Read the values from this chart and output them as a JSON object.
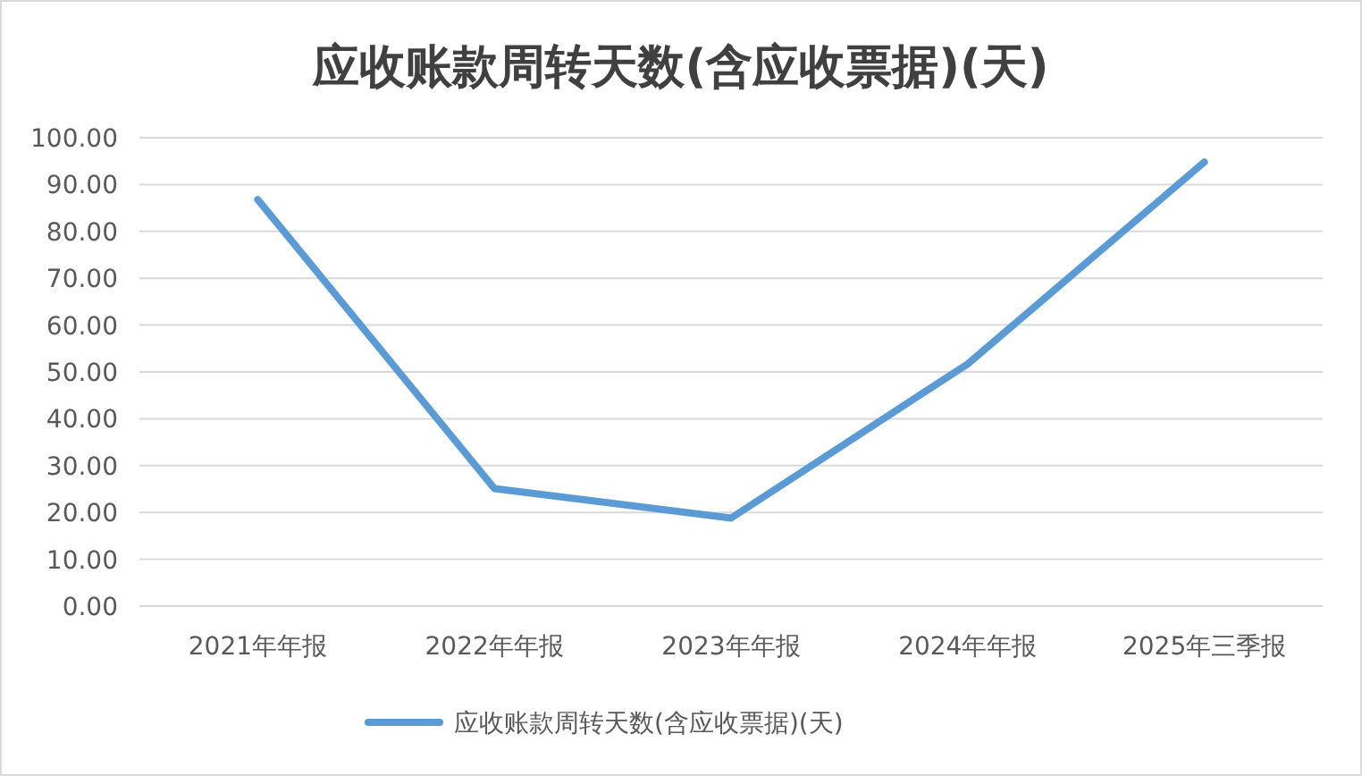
{
  "chart_data": {
    "type": "line",
    "title": "应收账款周转天数(含应收票据)(天)",
    "categories": [
      "2021年年报",
      "2022年年报",
      "2023年年报",
      "2024年年报",
      "2025年三季报"
    ],
    "series": [
      {
        "name": "应收账款周转天数(含应收票据)(天)",
        "color": "#5b9bd5",
        "values": [
          86.8,
          25.1,
          18.8,
          51.7,
          94.8
        ]
      }
    ],
    "ylim": [
      0,
      100
    ],
    "yticks": [
      {
        "value": 0,
        "label": "0.00"
      },
      {
        "value": 10,
        "label": "10.00"
      },
      {
        "value": 20,
        "label": "20.00"
      },
      {
        "value": 30,
        "label": "30.00"
      },
      {
        "value": 40,
        "label": "40.00"
      },
      {
        "value": 50,
        "label": "50.00"
      },
      {
        "value": 60,
        "label": "60.00"
      },
      {
        "value": 70,
        "label": "70.00"
      },
      {
        "value": 80,
        "label": "80.00"
      },
      {
        "value": 90,
        "label": "90.00"
      },
      {
        "value": 100,
        "label": "100.00"
      }
    ],
    "grid": "y",
    "legend": "bottom",
    "marker": "none",
    "line_style": "solid"
  }
}
